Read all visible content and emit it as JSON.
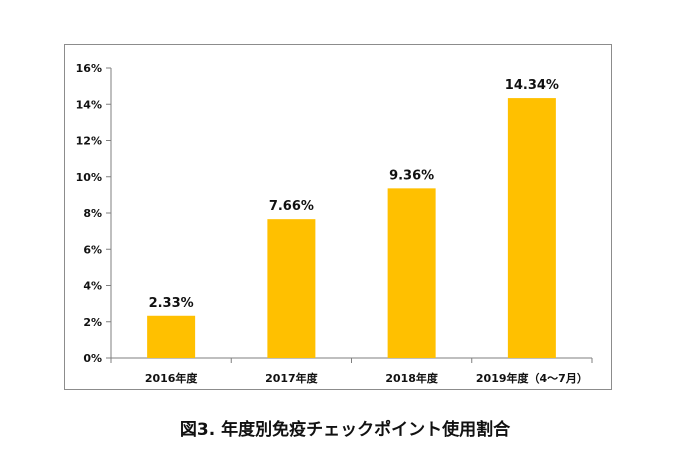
{
  "caption": "図3. 年度別免疫チェックポイント使用割合",
  "chart_data": {
    "type": "bar",
    "categories": [
      "2016年度",
      "2017年度",
      "2018年度",
      "2019年度（4～7月）"
    ],
    "values": [
      2.33,
      7.66,
      9.36,
      14.34
    ],
    "data_labels": [
      "2.33%",
      "7.66%",
      "9.36%",
      "14.34%"
    ],
    "ylim": [
      0,
      16
    ],
    "yticks": [
      0,
      2,
      4,
      6,
      8,
      10,
      12,
      14,
      16
    ],
    "ytick_labels": [
      "0%",
      "2%",
      "4%",
      "6%",
      "8%",
      "10%",
      "12%",
      "14%",
      "16%"
    ],
    "bar_color": "#ffc000",
    "grid": false,
    "legend": "none"
  }
}
